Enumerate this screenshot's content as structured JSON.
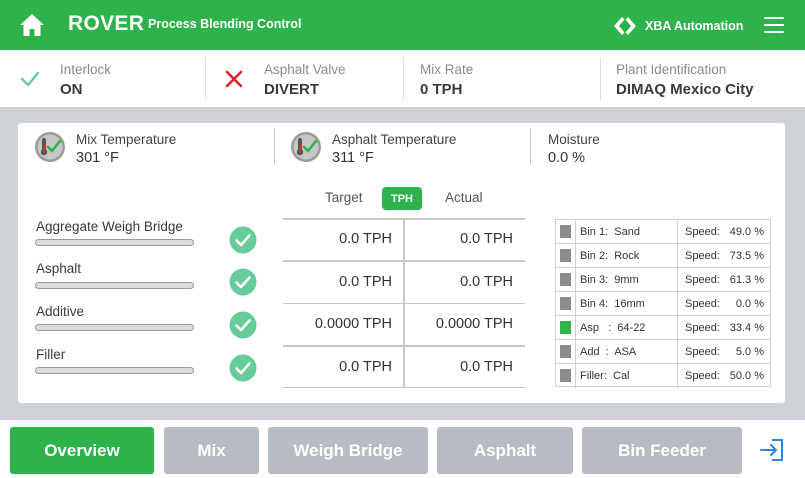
{
  "header": {
    "title": "ROVER",
    "subtitle": "Process Blending Control",
    "brand": "XBA Automation",
    "icons": [
      "home-icon",
      "brand-logo-icon",
      "hamburger-menu-icon"
    ]
  },
  "status": [
    {
      "label": "Interlock",
      "value": "ON",
      "icon": "check-icon"
    },
    {
      "label": "Asphalt Valve",
      "value": "DIVERT",
      "icon": "x-icon"
    },
    {
      "label": "Mix Rate",
      "value": "0 TPH"
    },
    {
      "label": "Plant Identification",
      "value": "DIMAQ Mexico City"
    }
  ],
  "metrics": [
    {
      "label": "Mix Temperature",
      "value": "301 °F",
      "icon": "thermometer-check-icon"
    },
    {
      "label": "Asphalt Temperature",
      "value": "311 °F",
      "icon": "thermometer-check-icon"
    },
    {
      "label": "Moisture",
      "value": "0.0 %"
    }
  ],
  "columns": {
    "target": "Target",
    "unit": "TPH",
    "actual": "Actual"
  },
  "rows": [
    {
      "label": "Aggregate Weigh Bridge",
      "target": "0.0 TPH",
      "actual": "0.0 TPH",
      "status": "ok"
    },
    {
      "label": "Asphalt",
      "target": "0.0 TPH",
      "actual": "0.0 TPH",
      "status": "ok"
    },
    {
      "label": "Additive",
      "target": "0.0000 TPH",
      "actual": "0.0000 TPH",
      "status": "ok"
    },
    {
      "label": "Filler",
      "target": "0.0 TPH",
      "actual": "0.0 TPH",
      "status": "ok"
    }
  ],
  "bins": [
    {
      "name": "Bin 1:  Sand",
      "speed_label": "Speed:",
      "speed": "49.0 %",
      "active": false
    },
    {
      "name": "Bin 2:  Rock",
      "speed_label": "Speed:",
      "speed": "73.5 %",
      "active": false
    },
    {
      "name": "Bin 3:  9mm",
      "speed_label": "Speed:",
      "speed": "61.3 %",
      "active": false
    },
    {
      "name": "Bin 4:  16mm",
      "speed_label": "Speed:",
      "speed": "0.0 %",
      "active": false
    },
    {
      "name": "Asp   :  64-22",
      "speed_label": "Speed:",
      "speed": "33.4 %",
      "active": true
    },
    {
      "name": "Add  :  ASA",
      "speed_label": "Speed:",
      "speed": "5.0 %",
      "active": false
    },
    {
      "name": "Filler:  Cal",
      "speed_label": "Speed:",
      "speed": "50.0 %",
      "active": false
    }
  ],
  "nav": [
    {
      "label": "Overview",
      "active": true
    },
    {
      "label": "Mix",
      "active": false
    },
    {
      "label": "Weigh Bridge",
      "active": false
    },
    {
      "label": "Asphalt",
      "active": false
    },
    {
      "label": "Bin Feeder",
      "active": false
    }
  ],
  "colors": {
    "primary": "#2eb24b",
    "inactive": "#b7bcc3",
    "alert": "#d9232e",
    "check": "#66cc99"
  }
}
